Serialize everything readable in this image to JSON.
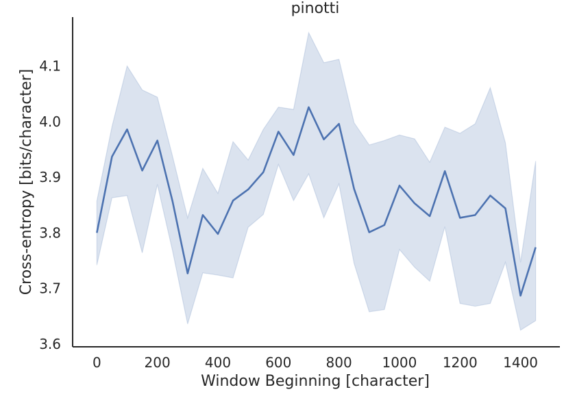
{
  "chart_data": {
    "type": "line",
    "title": "pinotti",
    "xlabel": "Window Beginning [character]",
    "ylabel": "Cross-entropy [bits/character]",
    "xlim": [
      -80,
      1530
    ],
    "ylim": [
      3.595,
      4.188
    ],
    "xticks": [
      0,
      200,
      400,
      600,
      800,
      1000,
      1200,
      1400
    ],
    "yticks": [
      3.6,
      3.7,
      3.8,
      3.9,
      4.0,
      4.1
    ],
    "grid": false,
    "series": [
      {
        "color": "#4c72b0",
        "x": [
          0,
          50,
          100,
          150,
          200,
          250,
          300,
          350,
          400,
          450,
          500,
          550,
          600,
          650,
          700,
          750,
          800,
          850,
          900,
          950,
          1000,
          1050,
          1100,
          1150,
          1200,
          1250,
          1300,
          1350,
          1400,
          1450
        ],
        "y": [
          3.8,
          3.937,
          3.986,
          3.912,
          3.966,
          3.857,
          3.727,
          3.832,
          3.798,
          3.858,
          3.878,
          3.909,
          3.982,
          3.94,
          4.026,
          3.968,
          3.996,
          3.879,
          3.801,
          3.814,
          3.885,
          3.853,
          3.83,
          3.911,
          3.827,
          3.832,
          3.867,
          3.844,
          3.687,
          3.774
        ],
        "ci_lower": [
          3.742,
          3.863,
          3.867,
          3.764,
          3.887,
          3.768,
          3.636,
          3.728,
          3.724,
          3.719,
          3.81,
          3.833,
          3.923,
          3.858,
          3.906,
          3.827,
          3.888,
          3.745,
          3.658,
          3.662,
          3.77,
          3.738,
          3.713,
          3.811,
          3.673,
          3.668,
          3.673,
          3.747,
          3.625,
          3.642
        ],
        "ci_upper": [
          3.857,
          3.991,
          4.1,
          4.057,
          4.044,
          3.938,
          3.827,
          3.916,
          3.871,
          3.964,
          3.931,
          3.986,
          4.026,
          4.022,
          4.16,
          4.106,
          4.112,
          3.998,
          3.958,
          3.966,
          3.976,
          3.969,
          3.927,
          3.99,
          3.979,
          3.996,
          4.061,
          3.962,
          3.747,
          3.929
        ]
      }
    ]
  }
}
